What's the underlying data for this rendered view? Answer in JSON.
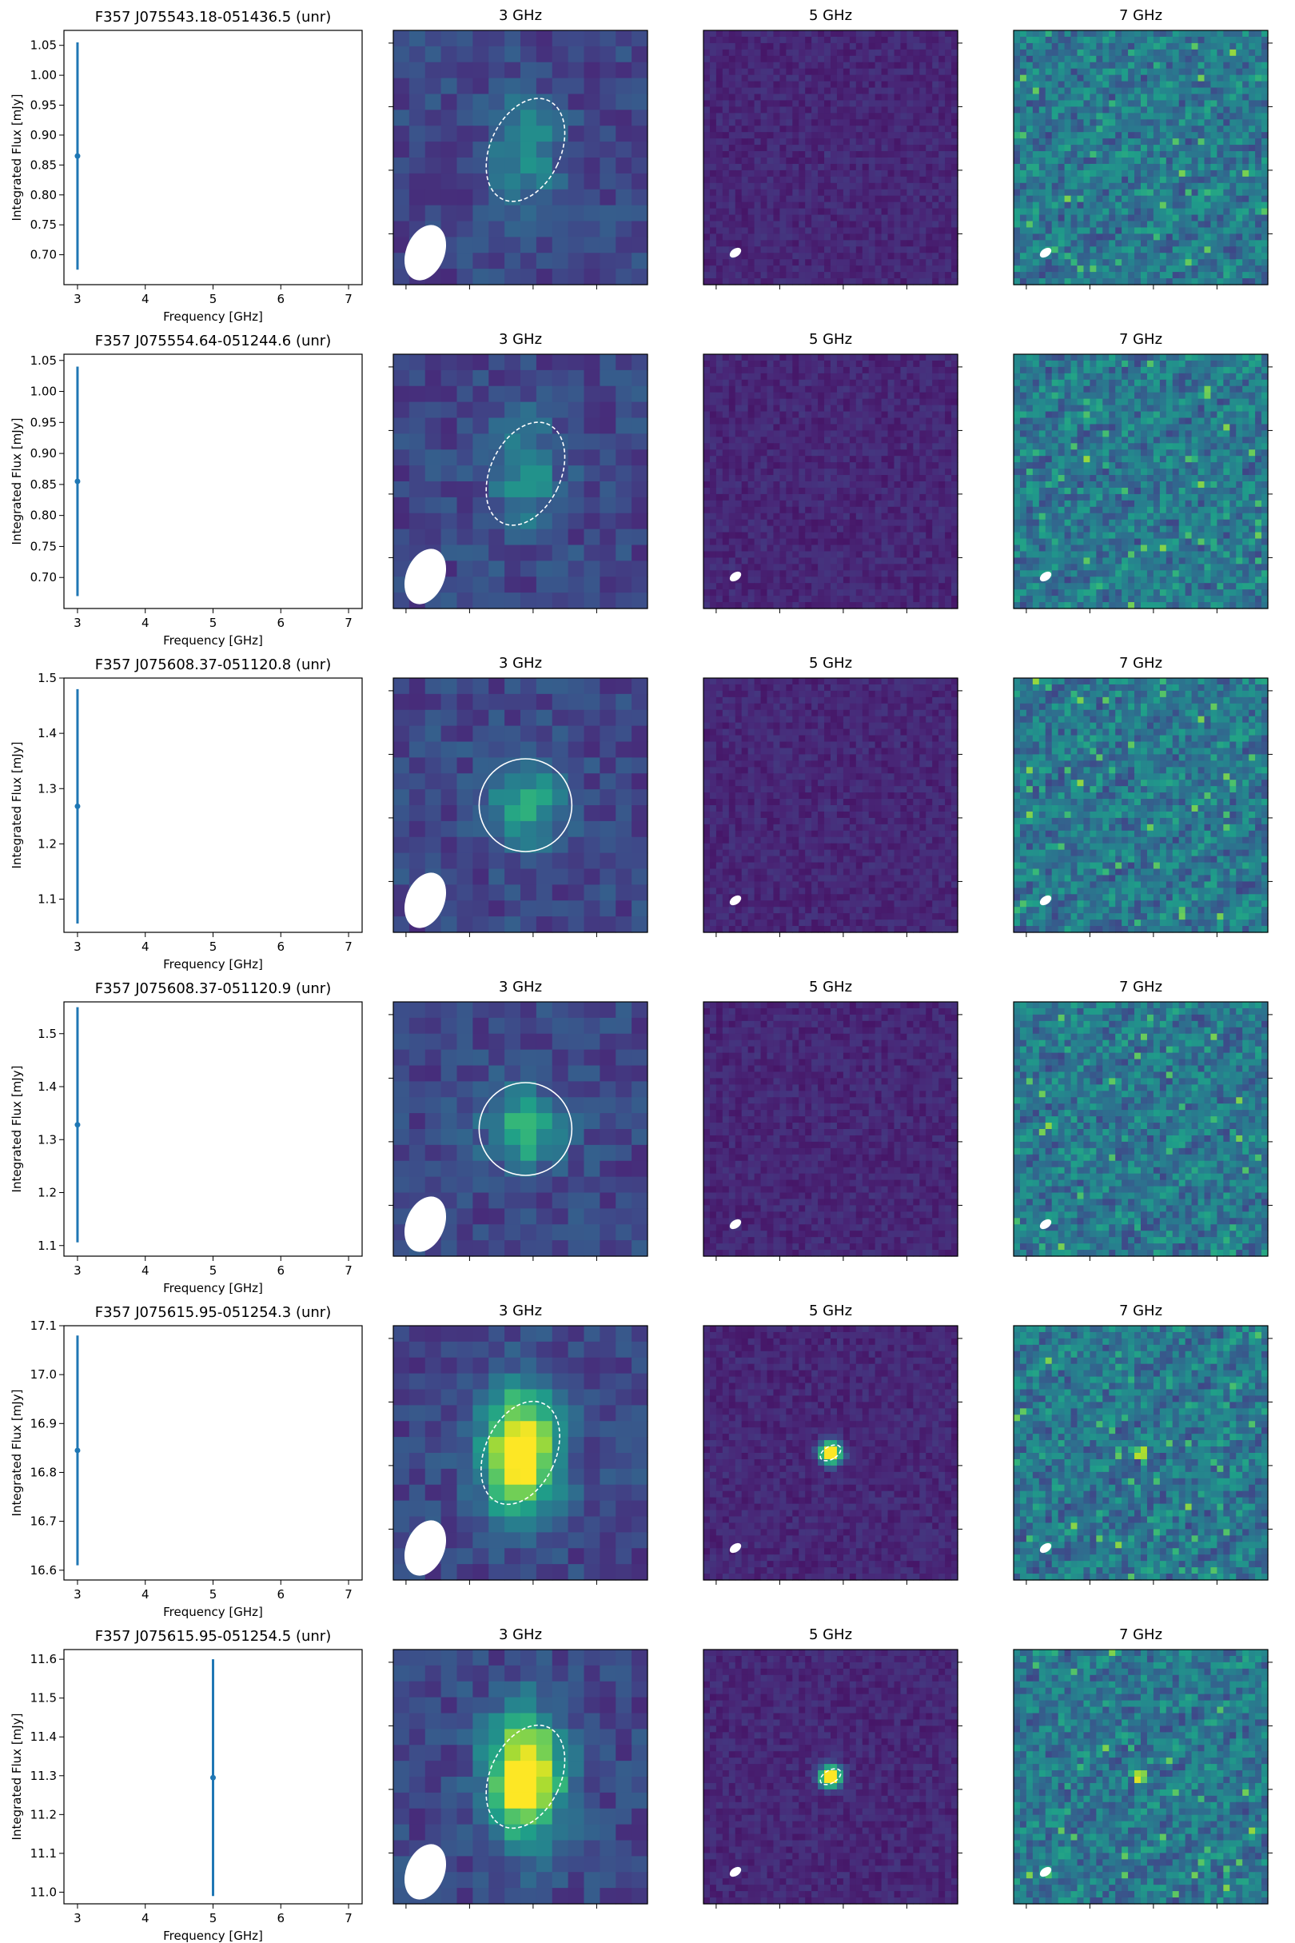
{
  "colors": {
    "errorbar": "#1f77b4",
    "colormap": "viridis",
    "contour": "#ffffff",
    "beam": "#ffffff"
  },
  "rows": [
    {
      "title": "F357 J075543.18-051436.5 (unr)",
      "xlabel": "Frequency [GHz]",
      "ylabel": "Integrated Flux [mJy]",
      "yticks": [
        "0.70",
        "0.75",
        "0.80",
        "0.85",
        "0.90",
        "0.95",
        "1.00",
        "1.05"
      ],
      "xticks": [
        "3",
        "4",
        "5",
        "6",
        "7"
      ],
      "image_titles": [
        "3 GHz",
        "5 GHz",
        "7 GHz"
      ]
    },
    {
      "title": "F357 J075554.64-051244.6 (unr)",
      "xlabel": "Frequency [GHz]",
      "ylabel": "Integrated Flux [mJy]",
      "yticks": [
        "0.70",
        "0.75",
        "0.80",
        "0.85",
        "0.90",
        "0.95",
        "1.00",
        "1.05"
      ],
      "xticks": [
        "3",
        "4",
        "5",
        "6",
        "7"
      ],
      "image_titles": [
        "3 GHz",
        "5 GHz",
        "7 GHz"
      ]
    },
    {
      "title": "F357 J075608.37-051120.8 (unr)",
      "xlabel": "Frequency [GHz]",
      "ylabel": "Integrated Flux [mJy]",
      "yticks": [
        "1.1",
        "1.2",
        "1.3",
        "1.4",
        "1.5"
      ],
      "xticks": [
        "3",
        "4",
        "5",
        "6",
        "7"
      ],
      "image_titles": [
        "3 GHz",
        "5 GHz",
        "7 GHz"
      ]
    },
    {
      "title": "F357 J075608.37-051120.9 (unr)",
      "xlabel": "Frequency [GHz]",
      "ylabel": "Integrated Flux [mJy]",
      "yticks": [
        "1.1",
        "1.2",
        "1.3",
        "1.4",
        "1.5"
      ],
      "xticks": [
        "3",
        "4",
        "5",
        "6",
        "7"
      ],
      "image_titles": [
        "3 GHz",
        "5 GHz",
        "7 GHz"
      ]
    },
    {
      "title": "F357 J075615.95-051254.3 (unr)",
      "xlabel": "Frequency [GHz]",
      "ylabel": "Integrated Flux [mJy]",
      "yticks": [
        "16.6",
        "16.7",
        "16.8",
        "16.9",
        "17.0",
        "17.1"
      ],
      "xticks": [
        "3",
        "4",
        "5",
        "6",
        "7"
      ],
      "image_titles": [
        "3 GHz",
        "5 GHz",
        "7 GHz"
      ]
    },
    {
      "title": "F357 J075615.95-051254.5 (unr)",
      "xlabel": "Frequency [GHz]",
      "ylabel": "Integrated Flux [mJy]",
      "yticks": [
        "11.0",
        "11.1",
        "11.2",
        "11.3",
        "11.4",
        "11.5",
        "11.6"
      ],
      "xticks": [
        "3",
        "4",
        "5",
        "6",
        "7"
      ],
      "image_titles": [
        "3 GHz",
        "5 GHz",
        "7 GHz"
      ]
    }
  ],
  "chart_data": [
    {
      "type": "scatter",
      "title": "F357 J075543.18-051436.5 (unr)",
      "xlabel": "Frequency [GHz]",
      "ylabel": "Integrated Flux [mJy]",
      "xlim": [
        2.8,
        7.2
      ],
      "ylim": [
        0.65,
        1.075
      ],
      "x": [
        3
      ],
      "y": [
        0.865
      ],
      "yerr": [
        0.19
      ],
      "errorbars": true,
      "grid": false
    },
    {
      "type": "scatter",
      "title": "F357 J075554.64-051244.6 (unr)",
      "xlabel": "Frequency [GHz]",
      "ylabel": "Integrated Flux [mJy]",
      "xlim": [
        2.8,
        7.2
      ],
      "ylim": [
        0.65,
        1.06
      ],
      "x": [
        3
      ],
      "y": [
        0.855
      ],
      "yerr": [
        0.185
      ],
      "errorbars": true,
      "grid": false
    },
    {
      "type": "scatter",
      "title": "F357 J075608.37-051120.8 (unr)",
      "xlabel": "Frequency [GHz]",
      "ylabel": "Integrated Flux [mJy]",
      "xlim": [
        2.8,
        7.2
      ],
      "ylim": [
        1.04,
        1.5
      ],
      "x": [
        3
      ],
      "y": [
        1.268
      ],
      "yerr": [
        0.212
      ],
      "errorbars": true,
      "grid": false
    },
    {
      "type": "scatter",
      "title": "F357 J075608.37-051120.9 (unr)",
      "xlabel": "Frequency [GHz]",
      "ylabel": "Integrated Flux [mJy]",
      "xlim": [
        2.8,
        7.2
      ],
      "ylim": [
        1.08,
        1.56
      ],
      "x": [
        3
      ],
      "y": [
        1.328
      ],
      "yerr": [
        0.222
      ],
      "errorbars": true,
      "grid": false
    },
    {
      "type": "scatter",
      "title": "F357 J075615.95-051254.3 (unr)",
      "xlabel": "Frequency [GHz]",
      "ylabel": "Integrated Flux [mJy]",
      "xlim": [
        2.8,
        7.2
      ],
      "ylim": [
        16.58,
        17.1
      ],
      "x": [
        3
      ],
      "y": [
        16.845
      ],
      "yerr": [
        0.235
      ],
      "errorbars": true,
      "grid": false
    },
    {
      "type": "scatter",
      "title": "F357 J075615.95-051254.5 (unr)",
      "xlabel": "Frequency [GHz]",
      "ylabel": "Integrated Flux [mJy]",
      "xlim": [
        2.8,
        7.2
      ],
      "ylim": [
        10.97,
        11.625
      ],
      "x": [
        5
      ],
      "y": [
        11.295
      ],
      "yerr": [
        0.305
      ],
      "errorbars": true,
      "grid": false
    },
    {
      "type": "heatmap",
      "description_colormap": "viridis",
      "panels": [
        {
          "row": 0,
          "title": "3 GHz",
          "source_level": 0.3,
          "source_pos": [
            0.52,
            0.47
          ],
          "source_size": [
            0.16,
            0.26
          ],
          "contour": "dashed"
        },
        {
          "row": 0,
          "title": "5 GHz",
          "source_level": 0.05,
          "source_pos": [
            0.5,
            0.5
          ],
          "source_size": [
            0.02,
            0.02
          ],
          "contour": "none"
        },
        {
          "row": 0,
          "title": "7 GHz",
          "source_level": 0.0,
          "contour": "none"
        },
        {
          "row": 1,
          "title": "3 GHz",
          "source_level": 0.3,
          "source_pos": [
            0.52,
            0.47
          ],
          "source_size": [
            0.16,
            0.26
          ],
          "contour": "dashed"
        },
        {
          "row": 1,
          "title": "5 GHz",
          "source_level": 0.05,
          "contour": "none"
        },
        {
          "row": 1,
          "title": "7 GHz",
          "source_level": 0.0,
          "contour": "none"
        },
        {
          "row": 2,
          "title": "3 GHz",
          "source_level": 0.42,
          "source_pos": [
            0.52,
            0.5
          ],
          "source_size": [
            0.18,
            0.2
          ],
          "contour": "solid"
        },
        {
          "row": 2,
          "title": "5 GHz",
          "source_level": 0.05,
          "contour": "none"
        },
        {
          "row": 2,
          "title": "7 GHz",
          "source_level": 0.0,
          "contour": "none"
        },
        {
          "row": 3,
          "title": "3 GHz",
          "source_level": 0.44,
          "source_pos": [
            0.52,
            0.5
          ],
          "source_size": [
            0.18,
            0.2
          ],
          "contour": "solid"
        },
        {
          "row": 3,
          "title": "5 GHz",
          "source_level": 0.05,
          "contour": "none"
        },
        {
          "row": 3,
          "title": "7 GHz",
          "source_level": 0.0,
          "contour": "none"
        },
        {
          "row": 4,
          "title": "3 GHz",
          "source_level": 0.95,
          "source_pos": [
            0.5,
            0.5
          ],
          "source_size": [
            0.18,
            0.3
          ],
          "contour": "dashed"
        },
        {
          "row": 4,
          "title": "5 GHz",
          "source_level": 1.0,
          "source_pos": [
            0.5,
            0.5
          ],
          "source_size": [
            0.05,
            0.05
          ],
          "contour": "dashed"
        },
        {
          "row": 4,
          "title": "7 GHz",
          "source_level": 1.0,
          "source_pos": [
            0.5,
            0.5
          ],
          "source_size": [
            0.02,
            0.02
          ],
          "contour": "none"
        },
        {
          "row": 5,
          "title": "3 GHz",
          "source_level": 0.95,
          "source_pos": [
            0.52,
            0.5
          ],
          "source_size": [
            0.18,
            0.3
          ],
          "contour": "dashed"
        },
        {
          "row": 5,
          "title": "5 GHz",
          "source_level": 1.0,
          "source_pos": [
            0.5,
            0.5
          ],
          "source_size": [
            0.05,
            0.05
          ],
          "contour": "dashed"
        },
        {
          "row": 5,
          "title": "7 GHz",
          "source_level": 1.0,
          "source_pos": [
            0.5,
            0.5
          ],
          "source_size": [
            0.02,
            0.02
          ],
          "contour": "none"
        }
      ]
    }
  ]
}
